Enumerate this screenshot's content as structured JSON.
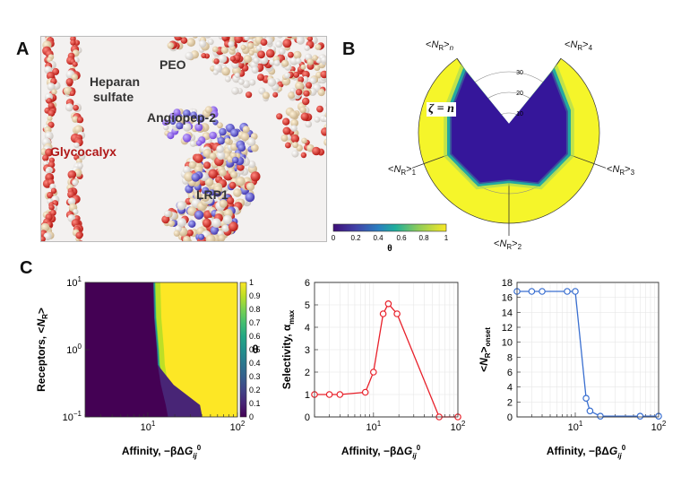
{
  "panels": {
    "a": {
      "letter": "A",
      "labels": {
        "heparan_line1": "Heparan",
        "heparan_line2": "sulfate",
        "peo": "PEO",
        "angiopep": "Angiopep-2",
        "glycocalyx": "Glycocalyx",
        "lrp1": "LRP1"
      }
    },
    "b": {
      "letter": "B",
      "zeta_label": "ζ = n",
      "axis_labels": [
        "<N_R>_n",
        "<N_R>_4",
        "<N_R>_3",
        "<N_R>_2",
        "<N_R>_1"
      ],
      "radial_ticks": [
        "10",
        "20",
        "30"
      ],
      "colorbar": {
        "ticks": [
          "0",
          "0.2",
          "0.4",
          "0.6",
          "0.8",
          "1"
        ],
        "label": "θ"
      }
    },
    "c": {
      "letter": "C",
      "heatmap": {
        "ylabel": "Receptors, <N_R>",
        "xlabel": "Affinity, −βΔG_ij^0",
        "yticks": [
          "10^1",
          "10^0",
          "10^−1"
        ],
        "xticks": [
          "10^1",
          "10^2"
        ],
        "colorbar_ticks": [
          "0",
          "0.1",
          "0.2",
          "0.3",
          "0.4",
          "0.5",
          "0.6",
          "0.7",
          "0.8",
          "0.9",
          "1"
        ],
        "colorbar_label": "θ"
      },
      "selectivity": {
        "ylabel": "Selectivity, α_max",
        "xlabel": "Affinity, −βΔG_ij^0",
        "yticks": [
          "0",
          "1",
          "2",
          "3",
          "4",
          "5",
          "6"
        ],
        "xticks": [
          "10^1",
          "10^2"
        ],
        "color": "#e8202a"
      },
      "onset": {
        "ylabel": "<N_R>_onset",
        "xlabel": "Affinity, −βΔG_ij^0",
        "yticks": [
          "0",
          "2",
          "4",
          "6",
          "8",
          "10",
          "12",
          "14",
          "16",
          "18"
        ],
        "xticks": [
          "10^1",
          "10^2"
        ],
        "color": "#3a6fd0"
      }
    }
  },
  "chart_data": [
    {
      "type": "heatmap",
      "xlabel": "Affinity, −βΔG_ij^0",
      "ylabel": "Receptors, <N_R>",
      "x_scale": "log",
      "y_scale": "log",
      "xlim": [
        2,
        100
      ],
      "ylim": [
        0.1,
        10
      ],
      "colorbar_range": [
        0,
        1
      ],
      "transition_affinity": [
        {
          "NR": 10,
          "affinity": 12.3
        },
        {
          "NR": 3,
          "affinity": 12.6
        },
        {
          "NR": 1,
          "affinity": 13.5
        },
        {
          "NR": 0.6,
          "affinity": 13.8
        },
        {
          "NR": 0.3,
          "affinity": 15.0
        },
        {
          "NR": 0.15,
          "affinity": 17.0
        },
        {
          "NR": 0.1,
          "affinity": 18.0
        }
      ]
    },
    {
      "type": "line",
      "xlabel": "Affinity, −βΔG_ij^0",
      "ylabel": "Selectivity, α_max",
      "x_scale": "log",
      "xlim": [
        2,
        100
      ],
      "ylim": [
        0,
        6
      ],
      "series": [
        {
          "x": [
            2,
            3,
            4,
            8,
            10,
            13,
            15,
            19,
            60,
            100
          ],
          "y": [
            1.0,
            1.0,
            1.0,
            1.1,
            2.0,
            4.6,
            5.05,
            4.6,
            0.0,
            0.0
          ]
        }
      ]
    },
    {
      "type": "line",
      "xlabel": "Affinity, −βΔG_ij^0",
      "ylabel": "<N_R>_onset",
      "x_scale": "log",
      "xlim": [
        2,
        100
      ],
      "ylim": [
        0,
        18
      ],
      "series": [
        {
          "x": [
            2,
            3,
            4,
            8,
            10,
            13.5,
            15,
            20,
            60,
            100
          ],
          "y": [
            16.8,
            16.8,
            16.8,
            16.8,
            16.8,
            2.5,
            0.8,
            0.1,
            0.1,
            0.1
          ]
        }
      ]
    }
  ]
}
